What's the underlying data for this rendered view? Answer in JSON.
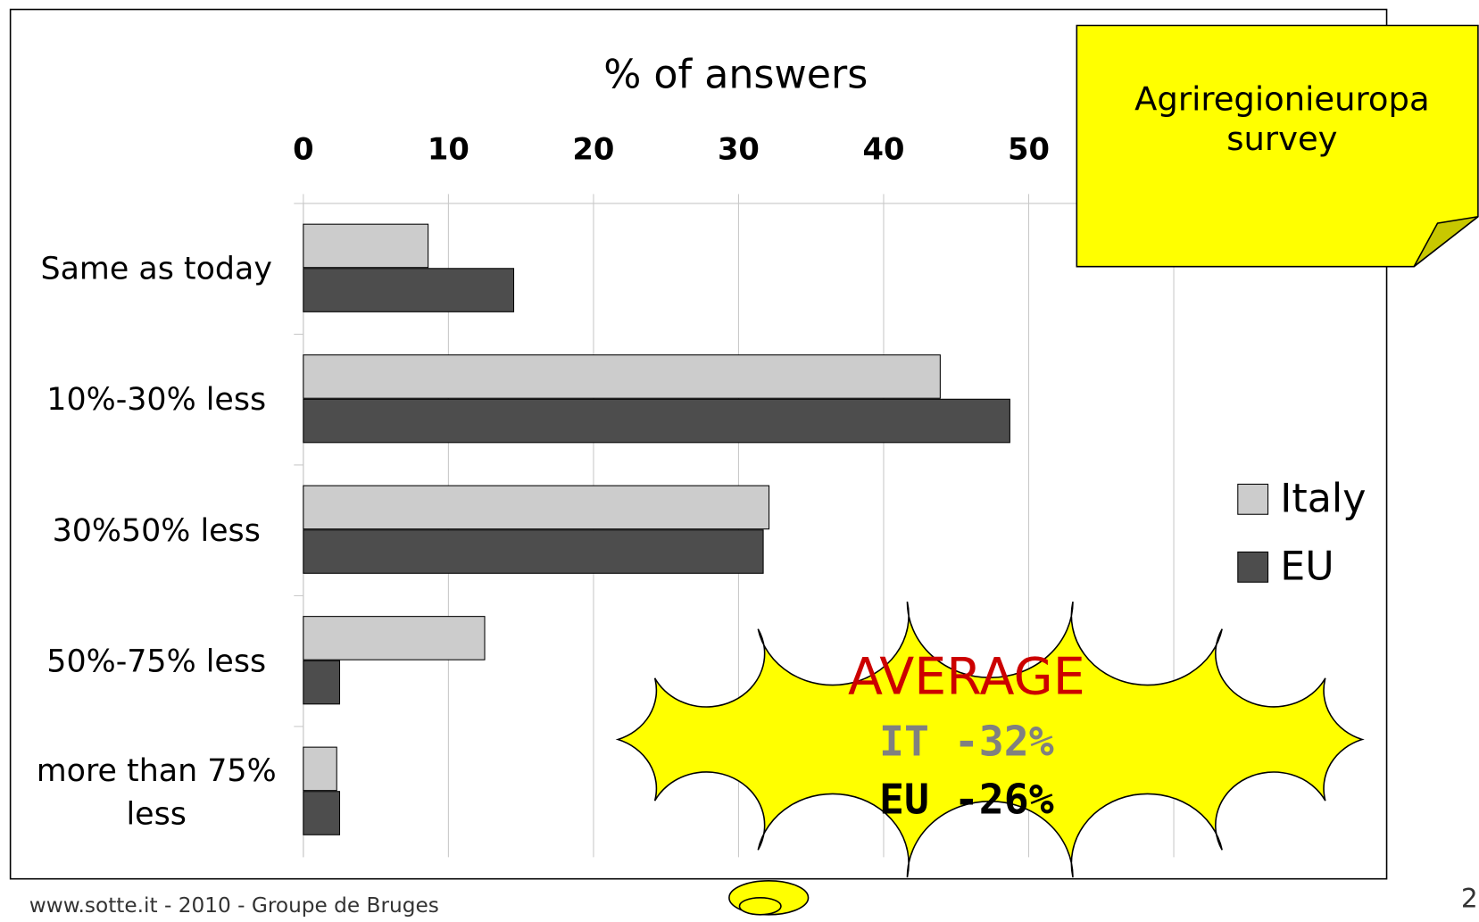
{
  "chart_data": {
    "type": "bar",
    "orientation": "horizontal",
    "x_axis_label": "% of answers",
    "categories": [
      "Same as today",
      "10%-30% less",
      "30%50% less",
      "50%-75% less",
      "more than 75% less"
    ],
    "series": [
      {
        "name": "Italy",
        "color": "#cccccc",
        "values": [
          8.6,
          43.9,
          32.1,
          12.5,
          2.3
        ]
      },
      {
        "name": "EU",
        "color": "#4d4d4d",
        "values": [
          14.5,
          48.7,
          31.7,
          2.5,
          2.5
        ]
      }
    ],
    "xlim": [
      0,
      60
    ],
    "xticks": [
      0,
      10,
      20,
      30,
      40,
      50,
      60
    ],
    "grid": true,
    "legend": "right"
  },
  "callout": {
    "text": "Agriregionieuropa survey"
  },
  "cloud": {
    "title": "AVERAGE",
    "it": "IT -32%",
    "eu": "EU -26%"
  },
  "footer": "www.sotte.it - 2010 - Groupe de Bruges",
  "page_number": "2"
}
